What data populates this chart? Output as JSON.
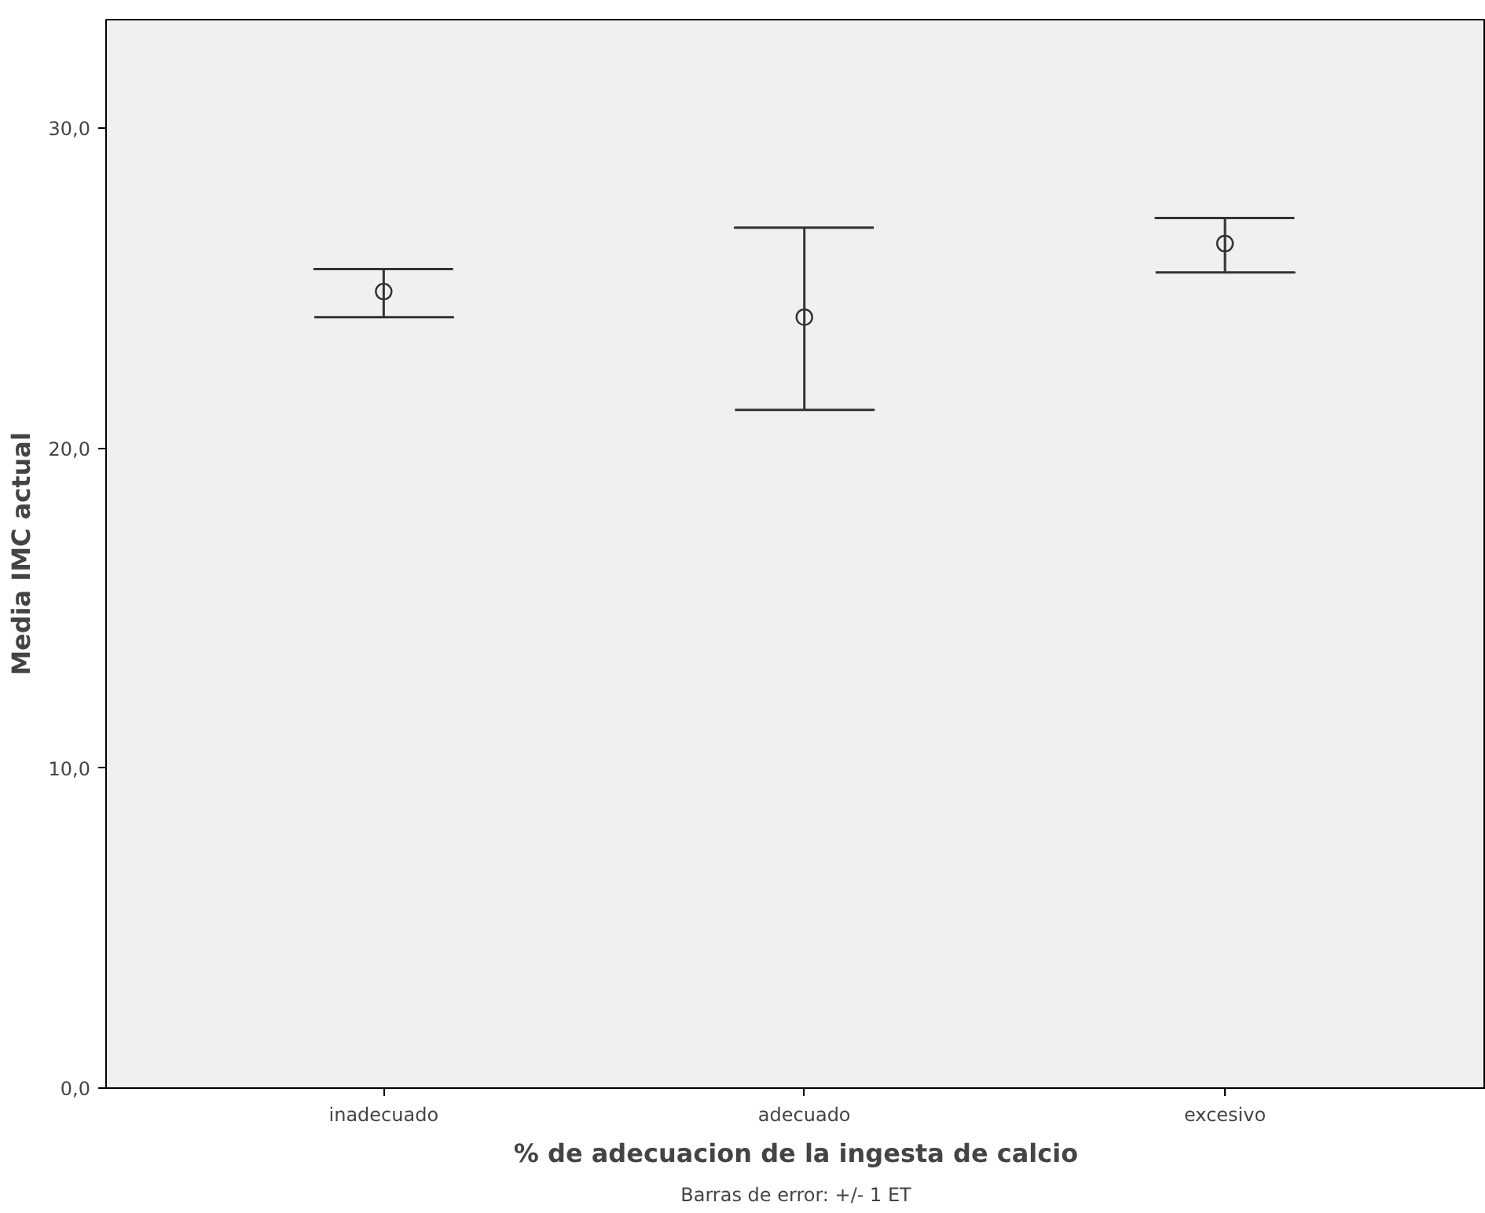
{
  "chart_data": {
    "type": "scatter",
    "xlabel": "% de adecuacion de la ingesta de calcio",
    "ylabel": "Media IMC actual",
    "categories": [
      "inadecuado",
      "adecuado",
      "excesivo"
    ],
    "values": [
      24.9,
      24.1,
      26.4
    ],
    "errors": [
      [
        24.1,
        25.6
      ],
      [
        21.2,
        26.9
      ],
      [
        25.5,
        27.2
      ]
    ],
    "color": "#333333",
    "marker": "circle",
    "grid": false,
    "ylim": [
      0,
      33.4
    ],
    "yticks": [
      {
        "value": 0,
        "label": "0,0"
      },
      {
        "value": 10,
        "label": "10,0"
      },
      {
        "value": 20,
        "label": "20,0"
      },
      {
        "value": 30,
        "label": "30,0"
      }
    ],
    "annotations": [
      "Barras de error: +/- 1 ET"
    ]
  }
}
